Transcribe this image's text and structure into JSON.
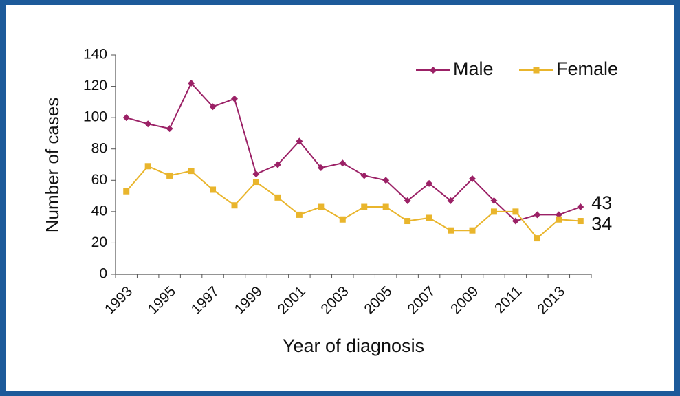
{
  "chart_data": {
    "type": "line",
    "y_label": "Number of cases",
    "x_label": "Year of diagnosis",
    "categories": [
      "1993",
      null,
      "1995",
      null,
      "1997",
      null,
      "1999",
      null,
      "2001",
      null,
      "2003",
      null,
      "2005",
      null,
      "2007",
      null,
      "2009",
      null,
      "2011",
      null,
      "2013",
      null
    ],
    "series": [
      {
        "name": "Male",
        "color": "#9b2166",
        "values": [
          100,
          96,
          93,
          122,
          107,
          112,
          64,
          70,
          85,
          68,
          71,
          63,
          60,
          47,
          58,
          47,
          61,
          47,
          34,
          38,
          38,
          43
        ]
      },
      {
        "name": "Female",
        "color": "#e9b52c",
        "values": [
          53,
          69,
          63,
          66,
          54,
          44,
          59,
          49,
          38,
          43,
          35,
          43,
          43,
          34,
          36,
          28,
          28,
          40,
          40,
          23,
          35,
          34
        ]
      }
    ],
    "ylim": [
      0,
      140
    ],
    "yticks": [
      0,
      20,
      40,
      60,
      80,
      100,
      120,
      140
    ],
    "legend": "top-right"
  }
}
